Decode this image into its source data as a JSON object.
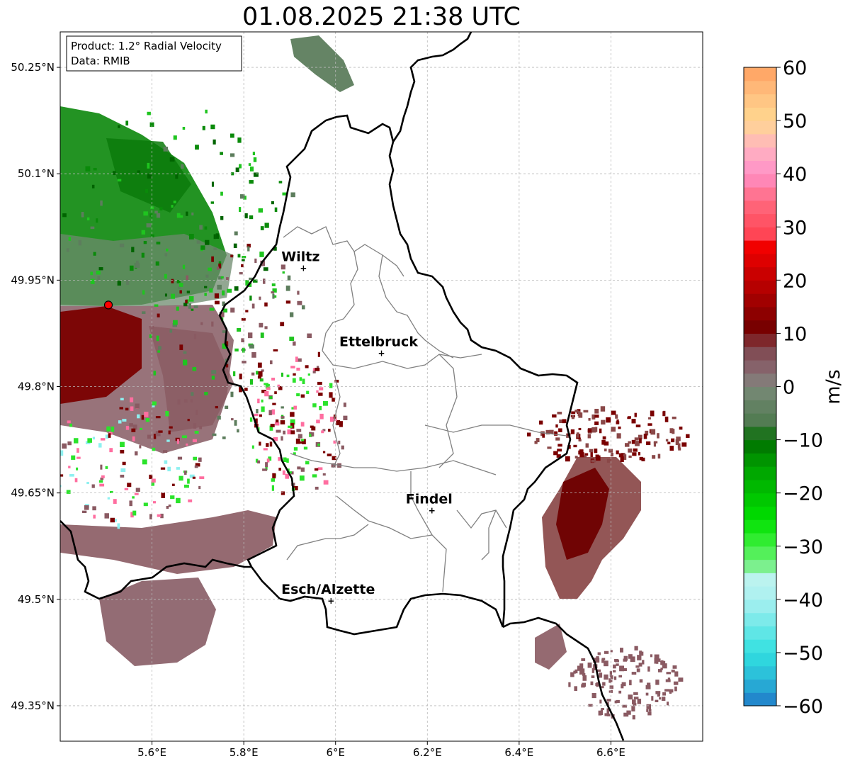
{
  "title": "01.08.2025 21:38 UTC",
  "info_box": {
    "line1": "Product: 1.2° Radial Velocity",
    "line2": "Data: RMIB"
  },
  "axes": {
    "x_ticks": [
      "5.6°E",
      "5.8°E",
      "6°E",
      "6.2°E",
      "6.4°E",
      "6.6°E"
    ],
    "x_tick_values": [
      5.6,
      5.8,
      6.0,
      6.2,
      6.4,
      6.6
    ],
    "y_ticks": [
      "50.25°N",
      "50.1°N",
      "49.95°N",
      "49.8°N",
      "49.65°N",
      "49.5°N",
      "49.35°N"
    ],
    "y_tick_values": [
      50.25,
      50.1,
      49.95,
      49.8,
      49.65,
      49.5,
      49.35
    ],
    "lon_range": [
      5.4,
      6.8
    ],
    "lat_range": [
      49.3,
      50.3
    ],
    "grid": true
  },
  "cities": [
    {
      "name": "Wiltz",
      "lon": 5.93,
      "lat": 49.967
    },
    {
      "name": "Ettelbruck",
      "lon": 6.1,
      "lat": 49.847
    },
    {
      "name": "Findel",
      "lon": 6.21,
      "lat": 49.625
    },
    {
      "name": "Esch/Alzette",
      "lon": 5.99,
      "lat": 49.498
    }
  ],
  "radar_site": {
    "lon": 5.505,
    "lat": 49.915,
    "color": "#ff0000"
  },
  "colorbar": {
    "label": "m/s",
    "min": -60,
    "max": 60,
    "ticks": [
      "−60",
      "−50",
      "−40",
      "−30",
      "−20",
      "−10",
      "0",
      "10",
      "20",
      "30",
      "40",
      "50",
      "60"
    ],
    "tick_values": [
      -60,
      -50,
      -40,
      -30,
      -20,
      -10,
      0,
      10,
      20,
      30,
      40,
      50,
      60
    ]
  },
  "colors": {
    "approaching_strong": "#00a000",
    "approaching_weak": "#5d7d5d",
    "receding_weak": "#8a5a62",
    "receding_strong": "#7a0000",
    "border": "#000000",
    "canton_lines": "#808080"
  }
}
